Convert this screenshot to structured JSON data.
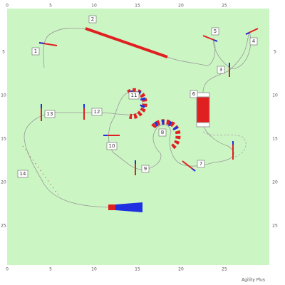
{
  "field": {
    "x_ticks": [
      0,
      5,
      10,
      15,
      20,
      25
    ],
    "y_ticks": [
      5,
      10,
      15,
      20,
      25
    ]
  },
  "obstacles": [
    "1",
    "2",
    "3",
    "4",
    "5",
    "6",
    "7",
    "8",
    "9",
    "10",
    "11",
    "12",
    "13",
    "14"
  ],
  "footer": "Agility Plus"
}
